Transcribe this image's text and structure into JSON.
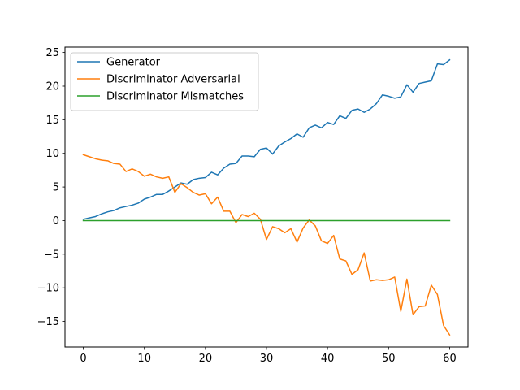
{
  "chart_data": {
    "type": "line",
    "title": "",
    "xlabel": "",
    "ylabel": "",
    "xlim": [
      -3,
      63
    ],
    "ylim": [
      -18.8,
      25.8
    ],
    "xticks": [
      0,
      10,
      20,
      30,
      40,
      50,
      60
    ],
    "yticks": [
      -15,
      -10,
      -5,
      0,
      5,
      10,
      15,
      20,
      25
    ],
    "xtick_labels": [
      "0",
      "10",
      "20",
      "30",
      "40",
      "50",
      "60"
    ],
    "ytick_labels": [
      "−15",
      "−10",
      "−5",
      "0",
      "5",
      "10",
      "15",
      "20",
      "25"
    ],
    "grid": false,
    "legend": "top-left",
    "x": [
      0,
      1,
      2,
      3,
      4,
      5,
      6,
      7,
      8,
      9,
      10,
      11,
      12,
      13,
      14,
      15,
      16,
      17,
      18,
      19,
      20,
      21,
      22,
      23,
      24,
      25,
      26,
      27,
      28,
      29,
      30,
      31,
      32,
      33,
      34,
      35,
      36,
      37,
      38,
      39,
      40,
      41,
      42,
      43,
      44,
      45,
      46,
      47,
      48,
      49,
      50,
      51,
      52,
      53,
      54,
      55,
      56,
      57,
      58,
      59,
      60
    ],
    "series": [
      {
        "name": "Generator",
        "color": "#1f77b4",
        "values": [
          0.2,
          0.4,
          0.6,
          1.0,
          1.3,
          1.5,
          1.9,
          2.1,
          2.3,
          2.6,
          3.2,
          3.5,
          3.9,
          3.9,
          4.4,
          5.0,
          5.6,
          5.4,
          6.1,
          6.3,
          6.4,
          7.2,
          6.8,
          7.8,
          8.4,
          8.5,
          9.6,
          9.6,
          9.5,
          10.6,
          10.8,
          9.9,
          11.1,
          11.7,
          12.2,
          12.9,
          12.4,
          13.8,
          14.2,
          13.8,
          14.6,
          14.3,
          15.6,
          15.2,
          16.4,
          16.6,
          16.1,
          16.6,
          17.4,
          18.7,
          18.5,
          18.2,
          18.4,
          20.2,
          19.1,
          20.4,
          20.6,
          20.8,
          23.3,
          23.2,
          23.9
        ]
      },
      {
        "name": "Discriminator Adversarial",
        "color": "#ff7f0e",
        "values": [
          9.8,
          9.5,
          9.2,
          9.0,
          8.9,
          8.5,
          8.4,
          7.3,
          7.7,
          7.3,
          6.6,
          6.9,
          6.5,
          6.3,
          6.5,
          4.2,
          5.5,
          4.9,
          4.2,
          3.8,
          4.0,
          2.5,
          3.5,
          1.4,
          1.4,
          -0.3,
          0.9,
          0.6,
          1.1,
          0.2,
          -2.8,
          -0.9,
          -1.2,
          -1.8,
          -1.2,
          -3.2,
          -1.1,
          0.1,
          -0.8,
          -3.0,
          -3.4,
          -2.2,
          -5.7,
          -6.0,
          -8.0,
          -7.3,
          -4.8,
          -9.0,
          -8.8,
          -8.9,
          -8.8,
          -8.4,
          -13.5,
          -8.7,
          -14.0,
          -12.8,
          -12.7,
          -9.6,
          -11.0,
          -15.6,
          -17.0
        ]
      },
      {
        "name": "Discriminator Mismatches",
        "color": "#2ca02c",
        "values": [
          0,
          0,
          0,
          0,
          0,
          0,
          0,
          0,
          0,
          0,
          0,
          0,
          0,
          0,
          0,
          0,
          0,
          0,
          0,
          0,
          0,
          0,
          0,
          0,
          0,
          0,
          0,
          0,
          0,
          0,
          0,
          0,
          0,
          0,
          0,
          0,
          0,
          0,
          0,
          0,
          0,
          0,
          0,
          0,
          0,
          0,
          0,
          0,
          0,
          0,
          0,
          0,
          0,
          0,
          0,
          0,
          0,
          0,
          0,
          0,
          0
        ]
      }
    ]
  }
}
